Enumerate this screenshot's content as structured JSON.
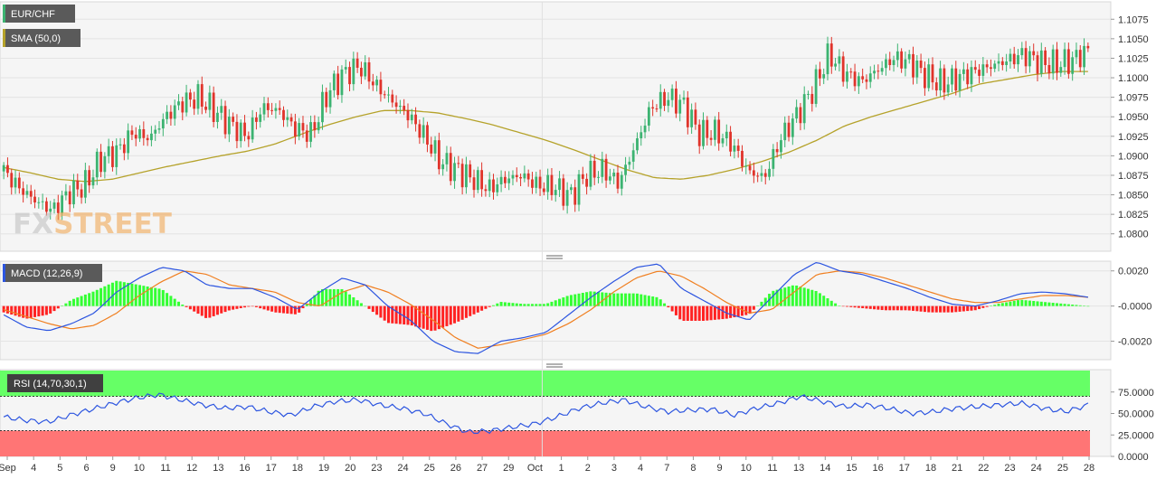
{
  "symbol_label": "EUR/CHF",
  "watermark": {
    "part1": "FX",
    "part2": "STREET"
  },
  "colors": {
    "up": "#3cb371",
    "down": "#e0342b",
    "sma": "#b5a22a",
    "macd_line": "#2c55e0",
    "signal_line": "#f07f20",
    "hist_pos": "#33ff33",
    "hist_neg": "#ff2222",
    "rsi_line": "#2c55e0",
    "overbought": "#66ff66",
    "oversold": "#ff7575",
    "panel_bg": "#f5f5f5",
    "tag_bg": "#5a5a5a"
  },
  "x_labels": [
    "Sep",
    "4",
    "5",
    "6",
    "9",
    "10",
    "11",
    "12",
    "13",
    "16",
    "17",
    "18",
    "19",
    "20",
    "23",
    "24",
    "25",
    "26",
    "27",
    "29",
    "Oct",
    "1",
    "2",
    "3",
    "4",
    "7",
    "8",
    "9",
    "10",
    "11",
    "13",
    "14",
    "15",
    "16",
    "17",
    "18",
    "21",
    "22",
    "23",
    "24",
    "25",
    "28"
  ],
  "chart_data": [
    {
      "type": "candlestick",
      "title": "EUR/CHF",
      "ylim": [
        1.078,
        1.1095
      ],
      "y_ticks": [
        "1.0800",
        "1.0825",
        "1.0850",
        "1.0875",
        "1.0900",
        "1.0925",
        "1.0950",
        "1.0975",
        "1.1000",
        "1.1025",
        "1.1050",
        "1.1075"
      ],
      "close_anchors": [
        1.088,
        1.0858,
        1.0842,
        1.083,
        1.0852,
        1.0862,
        1.0895,
        1.0905,
        1.093,
        1.0922,
        1.095,
        1.0968,
        1.0975,
        1.0958,
        1.094,
        1.0925,
        1.0962,
        1.0958,
        1.0935,
        1.0928,
        1.098,
        1.1005,
        1.1015,
        1.099,
        1.097,
        1.0952,
        1.0925,
        1.0892,
        1.0882,
        1.087,
        1.0858,
        1.087,
        1.0875,
        1.0862,
        1.086,
        1.0848,
        1.0875,
        1.0882,
        1.0865,
        1.0912,
        1.0962,
        1.0975,
        1.0965,
        1.0928,
        1.093,
        1.0915,
        1.088,
        1.0872,
        1.0922,
        1.0952,
        1.0985,
        1.103,
        1.1005,
        1.0995,
        1.101,
        1.1025,
        1.102,
        1.1002,
        1.0992,
        1.1,
        1.1008,
        1.1015,
        1.1022,
        1.103,
        1.102,
        1.1017,
        1.1022,
        1.1035
      ],
      "sma": {
        "name": "SMA (50,0)",
        "anchors": [
          1.0885,
          1.0878,
          1.087,
          1.0867,
          1.087,
          1.0878,
          1.0886,
          1.0893,
          1.09,
          1.0906,
          1.0915,
          1.0928,
          1.094,
          1.095,
          1.0958,
          1.0958,
          1.0955,
          1.0948,
          1.094,
          1.093,
          1.092,
          1.0908,
          1.0895,
          1.0882,
          1.0872,
          1.087,
          1.0875,
          1.0883,
          1.0893,
          1.0905,
          1.092,
          1.0938,
          1.095,
          1.096,
          1.097,
          1.098,
          1.0992,
          1.0998,
          1.1004,
          1.1008,
          1.1008
        ]
      }
    },
    {
      "type": "line+bar",
      "title": "MACD (12,26,9)",
      "ylim": [
        -0.003,
        0.0025
      ],
      "y_ticks": [
        "0.0020",
        "-0.0000",
        "-0.0020"
      ],
      "macd_anchors": [
        -0.0005,
        -0.0012,
        -0.0014,
        -0.001,
        -0.0004,
        0.0008,
        0.0016,
        0.0022,
        0.002,
        0.0012,
        0.001,
        0.001,
        0.0005,
        -0.0002,
        0.0008,
        0.0016,
        0.0012,
        0.0,
        -0.0008,
        -0.002,
        -0.0026,
        -0.0027,
        -0.002,
        -0.0018,
        -0.0015,
        -0.0005,
        0.0005,
        0.0014,
        0.0022,
        0.0024,
        0.001,
        0.0003,
        -0.0004,
        -0.0008,
        0.0005,
        0.0018,
        0.0025,
        0.002,
        0.0018,
        0.0014,
        0.001,
        0.0005,
        0.0001,
        0.0,
        0.0003,
        0.0007,
        0.0008,
        0.0007,
        0.0005
      ],
      "signal_anchors": [
        -0.0002,
        -0.0006,
        -0.001,
        -0.0013,
        -0.0011,
        -0.0004,
        0.0006,
        0.0014,
        0.002,
        0.0018,
        0.0012,
        0.001,
        0.0008,
        0.0002,
        0.0,
        0.0008,
        0.0012,
        0.0008,
        0.0001,
        -0.0008,
        -0.0018,
        -0.0024,
        -0.0022,
        -0.0019,
        -0.0016,
        -0.001,
        -0.0002,
        0.0008,
        0.0016,
        0.002,
        0.0017,
        0.001,
        0.0002,
        -0.0004,
        -0.0002,
        0.0008,
        0.0018,
        0.002,
        0.0019,
        0.0016,
        0.0012,
        0.0008,
        0.0004,
        0.0002,
        0.0002,
        0.0004,
        0.0006,
        0.0006,
        0.0005
      ],
      "series": [
        {
          "name": "MACD"
        },
        {
          "name": "Signal"
        },
        {
          "name": "Histogram"
        }
      ]
    },
    {
      "type": "line",
      "title": "RSI (14,70,30,1)",
      "ylim": [
        0,
        100
      ],
      "y_ticks": [
        "75.0000",
        "50.0000",
        "25.0000",
        "0.0000"
      ],
      "overbought": 70,
      "oversold": 30,
      "rsi_anchors": [
        46,
        42,
        40,
        48,
        55,
        62,
        68,
        72,
        66,
        60,
        56,
        58,
        52,
        48,
        58,
        64,
        66,
        60,
        56,
        50,
        38,
        28,
        30,
        34,
        38,
        46,
        56,
        62,
        66,
        58,
        52,
        54,
        55,
        48,
        56,
        62,
        70,
        64,
        58,
        60,
        56,
        50,
        52,
        56,
        58,
        60,
        62,
        56,
        52,
        60
      ]
    }
  ]
}
